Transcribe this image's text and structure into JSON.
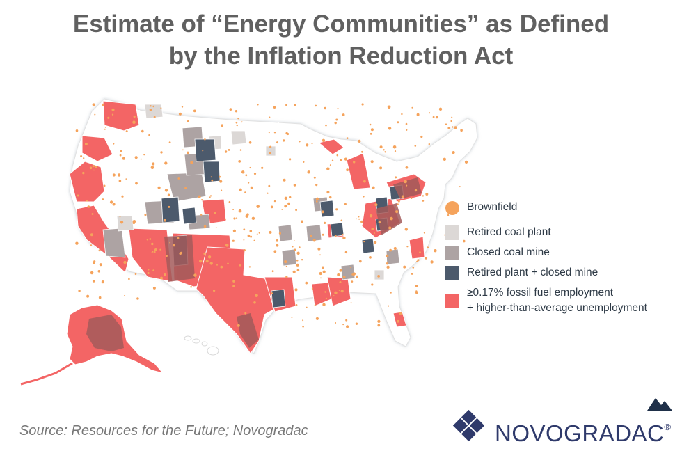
{
  "title": {
    "line1": "Estimate of “Energy Communities” as Defined",
    "line2": "by the Inflation Reduction Act"
  },
  "legend": [
    {
      "id": "brownfield",
      "label": "Brownfield",
      "color": "#f5a35c",
      "shape": "circle"
    },
    {
      "id": "retired-coal-plant",
      "label": "Retired coal plant",
      "color": "#dcd8d6",
      "shape": "square"
    },
    {
      "id": "closed-coal-mine",
      "label": "Closed coal mine",
      "color": "#ada3a3",
      "shape": "square"
    },
    {
      "id": "retired-plant-closed-mine",
      "label": "Retired plant + closed mine",
      "color": "#4c5a6c",
      "shape": "square"
    },
    {
      "id": "fossil-employment",
      "label": "≥0.17% fossil fuel employment",
      "label2": "+ higher-than-average unemployment",
      "color": "#f36565",
      "shape": "square"
    }
  ],
  "source": "Source: Resources for the Future; Novogradac",
  "brand": {
    "name": "NOVOGRADAC",
    "mark": "®",
    "color": "#2f3a6b"
  },
  "map": {
    "land_color": "#ffffff",
    "border_color": "#e0e0e0",
    "state_border_color": "#ffffff"
  }
}
